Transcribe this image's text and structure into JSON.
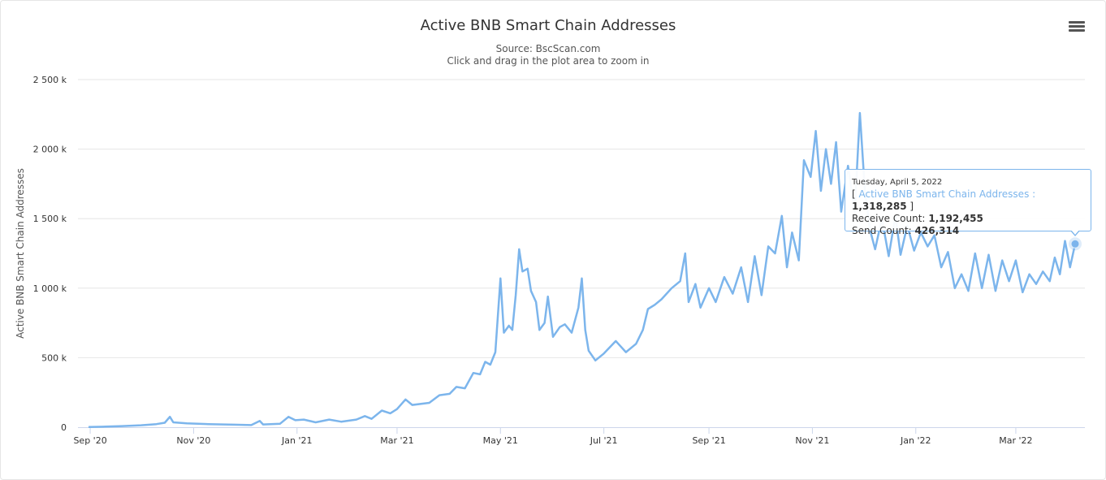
{
  "chart_data": {
    "type": "line",
    "title": "Active BNB Smart Chain Addresses",
    "subtitle": "Source: BscScan.com",
    "subtitle2": "Click and drag in the plot area to zoom in",
    "ylabel": "Active BNB Smart Chain Addresses",
    "xlabel": "",
    "ylim": [
      0,
      2500000
    ],
    "y_ticks": [
      {
        "value": 0,
        "label": "0"
      },
      {
        "value": 500000,
        "label": "500 k"
      },
      {
        "value": 1000000,
        "label": "1 000 k"
      },
      {
        "value": 1500000,
        "label": "1 500 k"
      },
      {
        "value": 2000000,
        "label": "2 000 k"
      },
      {
        "value": 2500000,
        "label": "2 500 k"
      }
    ],
    "x_range": [
      "2020-08-31",
      "2022-04-05"
    ],
    "x_ticks": [
      {
        "value": "2020-09-01",
        "label": "Sep '20"
      },
      {
        "value": "2020-11-01",
        "label": "Nov '20"
      },
      {
        "value": "2021-01-01",
        "label": "Jan '21"
      },
      {
        "value": "2021-03-01",
        "label": "Mar '21"
      },
      {
        "value": "2021-05-01",
        "label": "May '21"
      },
      {
        "value": "2021-07-01",
        "label": "Jul '21"
      },
      {
        "value": "2021-09-01",
        "label": "Sep '21"
      },
      {
        "value": "2021-11-01",
        "label": "Nov '21"
      },
      {
        "value": "2022-01-01",
        "label": "Jan '22"
      },
      {
        "value": "2022-03-01",
        "label": "Mar '22"
      }
    ],
    "grid": true,
    "legend": "none",
    "color": "#7cb5ec",
    "series": [
      {
        "name": "Active BNB Smart Chain Addresses",
        "points": [
          [
            "2020-08-31",
            2000
          ],
          [
            "2020-09-10",
            4000
          ],
          [
            "2020-09-20",
            8000
          ],
          [
            "2020-10-01",
            14000
          ],
          [
            "2020-10-10",
            22000
          ],
          [
            "2020-10-15",
            32000
          ],
          [
            "2020-10-18",
            75000
          ],
          [
            "2020-10-20",
            35000
          ],
          [
            "2020-10-28",
            28000
          ],
          [
            "2020-11-10",
            22000
          ],
          [
            "2020-11-25",
            18000
          ],
          [
            "2020-12-05",
            15000
          ],
          [
            "2020-12-10",
            45000
          ],
          [
            "2020-12-12",
            20000
          ],
          [
            "2020-12-22",
            25000
          ],
          [
            "2020-12-27",
            75000
          ],
          [
            "2020-12-31",
            50000
          ],
          [
            "2021-01-05",
            55000
          ],
          [
            "2021-01-12",
            35000
          ],
          [
            "2021-01-20",
            55000
          ],
          [
            "2021-01-27",
            40000
          ],
          [
            "2021-02-05",
            55000
          ],
          [
            "2021-02-10",
            80000
          ],
          [
            "2021-02-14",
            60000
          ],
          [
            "2021-02-20",
            120000
          ],
          [
            "2021-02-25",
            100000
          ],
          [
            "2021-03-01",
            130000
          ],
          [
            "2021-03-06",
            200000
          ],
          [
            "2021-03-10",
            160000
          ],
          [
            "2021-03-20",
            175000
          ],
          [
            "2021-03-26",
            230000
          ],
          [
            "2021-04-01",
            240000
          ],
          [
            "2021-04-05",
            290000
          ],
          [
            "2021-04-10",
            280000
          ],
          [
            "2021-04-15",
            390000
          ],
          [
            "2021-04-19",
            380000
          ],
          [
            "2021-04-22",
            470000
          ],
          [
            "2021-04-25",
            450000
          ],
          [
            "2021-04-28",
            540000
          ],
          [
            "2021-05-01",
            1070000
          ],
          [
            "2021-05-03",
            680000
          ],
          [
            "2021-05-06",
            730000
          ],
          [
            "2021-05-08",
            700000
          ],
          [
            "2021-05-10",
            950000
          ],
          [
            "2021-05-12",
            1280000
          ],
          [
            "2021-05-14",
            1120000
          ],
          [
            "2021-05-17",
            1140000
          ],
          [
            "2021-05-19",
            980000
          ],
          [
            "2021-05-22",
            900000
          ],
          [
            "2021-05-24",
            700000
          ],
          [
            "2021-05-27",
            750000
          ],
          [
            "2021-05-29",
            940000
          ],
          [
            "2021-06-01",
            650000
          ],
          [
            "2021-06-05",
            720000
          ],
          [
            "2021-06-08",
            740000
          ],
          [
            "2021-06-12",
            680000
          ],
          [
            "2021-06-16",
            860000
          ],
          [
            "2021-06-18",
            1070000
          ],
          [
            "2021-06-20",
            700000
          ],
          [
            "2021-06-22",
            550000
          ],
          [
            "2021-06-26",
            480000
          ],
          [
            "2021-07-01",
            530000
          ],
          [
            "2021-07-08",
            620000
          ],
          [
            "2021-07-14",
            540000
          ],
          [
            "2021-07-20",
            600000
          ],
          [
            "2021-07-24",
            700000
          ],
          [
            "2021-07-27",
            850000
          ],
          [
            "2021-07-31",
            880000
          ],
          [
            "2021-08-04",
            920000
          ],
          [
            "2021-08-10",
            1000000
          ],
          [
            "2021-08-15",
            1050000
          ],
          [
            "2021-08-18",
            1250000
          ],
          [
            "2021-08-20",
            900000
          ],
          [
            "2021-08-24",
            1030000
          ],
          [
            "2021-08-27",
            860000
          ],
          [
            "2021-09-01",
            1000000
          ],
          [
            "2021-09-05",
            900000
          ],
          [
            "2021-09-10",
            1080000
          ],
          [
            "2021-09-15",
            960000
          ],
          [
            "2021-09-20",
            1150000
          ],
          [
            "2021-09-24",
            900000
          ],
          [
            "2021-09-28",
            1230000
          ],
          [
            "2021-10-02",
            950000
          ],
          [
            "2021-10-06",
            1300000
          ],
          [
            "2021-10-10",
            1250000
          ],
          [
            "2021-10-14",
            1520000
          ],
          [
            "2021-10-17",
            1150000
          ],
          [
            "2021-10-20",
            1400000
          ],
          [
            "2021-10-24",
            1200000
          ],
          [
            "2021-10-27",
            1920000
          ],
          [
            "2021-10-31",
            1800000
          ],
          [
            "2021-11-03",
            2130000
          ],
          [
            "2021-11-06",
            1700000
          ],
          [
            "2021-11-09",
            2000000
          ],
          [
            "2021-11-12",
            1750000
          ],
          [
            "2021-11-15",
            2050000
          ],
          [
            "2021-11-18",
            1550000
          ],
          [
            "2021-11-22",
            1880000
          ],
          [
            "2021-11-26",
            1550000
          ],
          [
            "2021-11-29",
            2260000
          ],
          [
            "2021-12-02",
            1700000
          ],
          [
            "2021-12-05",
            1420000
          ],
          [
            "2021-12-08",
            1280000
          ],
          [
            "2021-12-12",
            1500000
          ],
          [
            "2021-12-16",
            1230000
          ],
          [
            "2021-12-20",
            1520000
          ],
          [
            "2021-12-23",
            1240000
          ],
          [
            "2021-12-27",
            1450000
          ],
          [
            "2021-12-31",
            1270000
          ],
          [
            "2022-01-04",
            1400000
          ],
          [
            "2022-01-08",
            1300000
          ],
          [
            "2022-01-12",
            1380000
          ],
          [
            "2022-01-16",
            1150000
          ],
          [
            "2022-01-20",
            1260000
          ],
          [
            "2022-01-24",
            1000000
          ],
          [
            "2022-01-28",
            1100000
          ],
          [
            "2022-02-01",
            980000
          ],
          [
            "2022-02-05",
            1250000
          ],
          [
            "2022-02-09",
            1000000
          ],
          [
            "2022-02-13",
            1240000
          ],
          [
            "2022-02-17",
            980000
          ],
          [
            "2022-02-21",
            1200000
          ],
          [
            "2022-02-25",
            1050000
          ],
          [
            "2022-03-01",
            1200000
          ],
          [
            "2022-03-05",
            970000
          ],
          [
            "2022-03-09",
            1100000
          ],
          [
            "2022-03-13",
            1030000
          ],
          [
            "2022-03-17",
            1120000
          ],
          [
            "2022-03-21",
            1050000
          ],
          [
            "2022-03-24",
            1220000
          ],
          [
            "2022-03-27",
            1100000
          ],
          [
            "2022-03-30",
            1340000
          ],
          [
            "2022-04-02",
            1150000
          ],
          [
            "2022-04-05",
            1318285
          ]
        ]
      }
    ],
    "tooltip": {
      "date": "Tuesday, April 5, 2022",
      "series_label": "Active BNB Smart Chain Addresses",
      "series_value": "1,318,285",
      "point_x": "2022-04-05",
      "point_y": 1318285,
      "rows": [
        {
          "label": "Receive Count:",
          "value": "1,192,455"
        },
        {
          "label": "Send Count:",
          "value": "426,314"
        }
      ]
    }
  },
  "menu": {
    "icon": "hamburger-menu-icon"
  }
}
